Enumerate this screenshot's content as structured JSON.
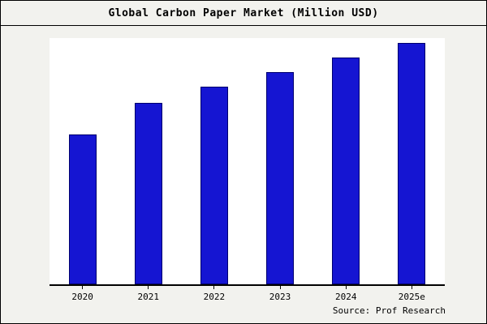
{
  "chart_data": {
    "type": "bar",
    "title": "Global Carbon Paper Market (Million USD)",
    "categories": [
      "2020",
      "2021",
      "2022",
      "2023",
      "2024",
      "2025e"
    ],
    "values": [
      62,
      75,
      82,
      88,
      94,
      100
    ],
    "xlabel": "",
    "ylabel": "",
    "ylim": [
      0,
      102
    ],
    "grid": false,
    "legend": false,
    "bar_color": "#1515d2",
    "bar_edge_color": "#00006e",
    "background_color": "#f2f2ee",
    "plot_background": "#ffffff",
    "axis_color": "#000000"
  },
  "footer": {
    "source_label": "Source: Prof Research"
  }
}
